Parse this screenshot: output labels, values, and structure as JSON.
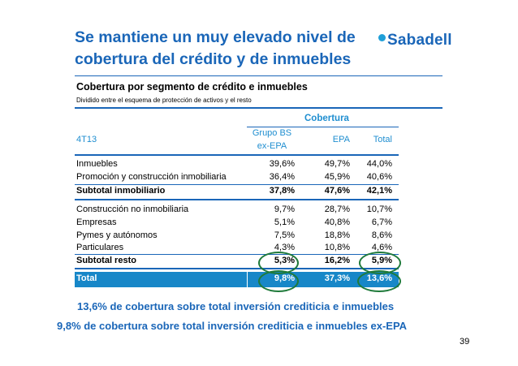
{
  "slide": {
    "title_line1": "Se mantiene un muy elevado nivel de",
    "title_line2": "cobertura del crédito y de inmuebles",
    "logo_text": "Sabadell",
    "page_number": "39"
  },
  "section": {
    "title": "Cobertura por segmento de crédito e inmuebles",
    "subtitle": "Dividido entre el esquema de protección de activos y el resto"
  },
  "table": {
    "group_header": "Cobertura",
    "period": "4T13",
    "col_grupo_line1": "Grupo BS",
    "col_grupo_line2": "ex-EPA",
    "col_epa": "EPA",
    "col_total": "Total",
    "rows": [
      {
        "label": "Inmuebles",
        "grupo": "39,6%",
        "epa": "49,7%",
        "total": "44,0%"
      },
      {
        "label": "Promoción y construcción inmobiliaria",
        "grupo": "36,4%",
        "epa": "45,9%",
        "total": "40,6%"
      },
      {
        "label": "Subtotal inmobiliario",
        "grupo": "37,8%",
        "epa": "47,6%",
        "total": "42,1%"
      },
      {
        "label": "Construcción no inmobiliaria",
        "grupo": "9,7%",
        "epa": "28,7%",
        "total": "10,7%"
      },
      {
        "label": "Empresas",
        "grupo": "5,1%",
        "epa": "40,8%",
        "total": "6,7%"
      },
      {
        "label": "Pymes y autónomos",
        "grupo": "7,5%",
        "epa": "18,8%",
        "total": "8,6%"
      },
      {
        "label": "Particulares",
        "grupo": "4,3%",
        "epa": "10,8%",
        "total": "4,6%"
      },
      {
        "label": "Subtotal resto",
        "grupo": "5,3%",
        "epa": "16,2%",
        "total": "5,9%"
      }
    ],
    "total": {
      "label": "Total",
      "grupo": "9,8%",
      "epa": "37,3%",
      "total": "13,6%"
    }
  },
  "footnotes": {
    "line1": "13,6% de cobertura sobre total inversión crediticia e inmuebles",
    "line2": "9,8% de cobertura sobre total inversión crediticia e inmuebles ex-EPA"
  },
  "colors": {
    "brand_blue": "#1a66b8",
    "header_blue": "#1f8ed0",
    "total_bar": "#1787c8",
    "highlight_ellipse": "#1f7a3a"
  }
}
